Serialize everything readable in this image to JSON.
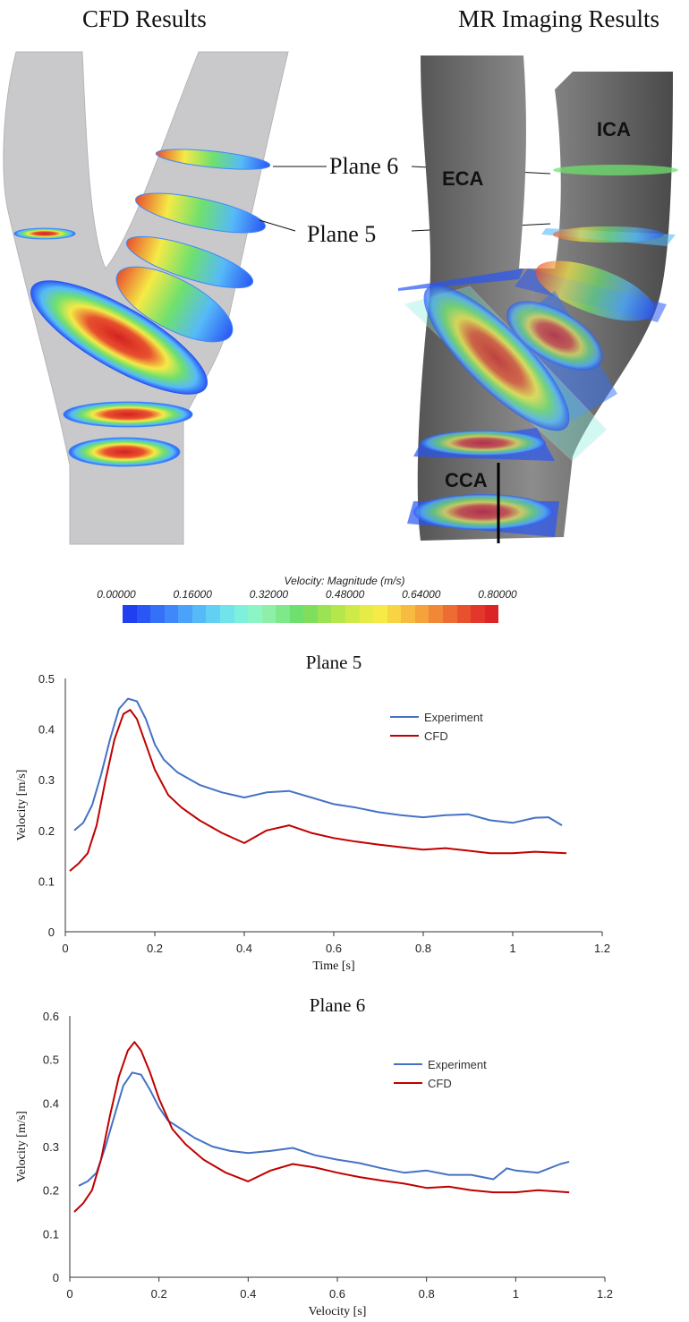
{
  "figure": {
    "left_title": "CFD Results",
    "right_title": "MR Imaging Results",
    "plane_labels": [
      "Plane 6",
      "Plane 5"
    ],
    "vessel_labels": {
      "ica": "ICA",
      "eca": "ECA",
      "cca": "CCA"
    }
  },
  "colorbar": {
    "title": "Velocity: Magnitude (m/s)",
    "ticks": [
      "0.00000",
      "0.16000",
      "0.32000",
      "0.48000",
      "0.64000",
      "0.80000"
    ],
    "colors": [
      "#1f3ff0",
      "#2a56f5",
      "#3470f8",
      "#3f88fa",
      "#4aa2fb",
      "#56baf8",
      "#62d0f2",
      "#70e4ea",
      "#7ef0dc",
      "#8cf5c6",
      "#8ef0a8",
      "#7ee88a",
      "#6fe06e",
      "#7fdf5d",
      "#9be353",
      "#b5e74c",
      "#cfea48",
      "#e5ec47",
      "#f5ea46",
      "#f8d443",
      "#f6bb40",
      "#f3a23c",
      "#f08838",
      "#ec6c33",
      "#e8502e",
      "#e2372a",
      "#dc2426"
    ]
  },
  "chart_data": [
    {
      "type": "line",
      "title": "Plane 5",
      "xlabel": "Time [s]",
      "ylabel": "Velocity [m/s]",
      "xlim": [
        0,
        1.2
      ],
      "ylim": [
        0,
        0.5
      ],
      "xticks": [
        "0",
        "0.2",
        "0.4",
        "0.6",
        "0.8",
        "1",
        "1.2"
      ],
      "yticks": [
        "0",
        "0.1",
        "0.2",
        "0.3",
        "0.4",
        "0.5"
      ],
      "legend_position": "top-right",
      "series": [
        {
          "name": "Experiment",
          "color": "#4472c4",
          "x": [
            0.02,
            0.04,
            0.06,
            0.08,
            0.1,
            0.12,
            0.14,
            0.16,
            0.18,
            0.2,
            0.22,
            0.25,
            0.3,
            0.35,
            0.4,
            0.45,
            0.5,
            0.55,
            0.6,
            0.65,
            0.7,
            0.75,
            0.8,
            0.85,
            0.9,
            0.95,
            1.0,
            1.05,
            1.08,
            1.11
          ],
          "y": [
            0.2,
            0.215,
            0.25,
            0.31,
            0.38,
            0.44,
            0.46,
            0.455,
            0.42,
            0.37,
            0.34,
            0.315,
            0.29,
            0.275,
            0.265,
            0.275,
            0.278,
            0.265,
            0.252,
            0.245,
            0.236,
            0.23,
            0.226,
            0.23,
            0.232,
            0.22,
            0.215,
            0.225,
            0.226,
            0.21
          ]
        },
        {
          "name": "CFD",
          "color": "#c00000",
          "x": [
            0.01,
            0.03,
            0.05,
            0.07,
            0.09,
            0.11,
            0.13,
            0.145,
            0.16,
            0.18,
            0.2,
            0.23,
            0.26,
            0.3,
            0.35,
            0.4,
            0.45,
            0.5,
            0.55,
            0.6,
            0.65,
            0.7,
            0.75,
            0.8,
            0.85,
            0.9,
            0.95,
            1.0,
            1.05,
            1.12
          ],
          "y": [
            0.12,
            0.135,
            0.155,
            0.21,
            0.3,
            0.38,
            0.43,
            0.438,
            0.42,
            0.37,
            0.32,
            0.27,
            0.245,
            0.22,
            0.195,
            0.175,
            0.2,
            0.21,
            0.195,
            0.185,
            0.178,
            0.172,
            0.167,
            0.162,
            0.165,
            0.16,
            0.155,
            0.155,
            0.158,
            0.155
          ]
        }
      ]
    },
    {
      "type": "line",
      "title": "Plane 6",
      "xlabel": "Velocity [s]",
      "ylabel": "Velocity [m/s]",
      "xlim": [
        0,
        1.2
      ],
      "ylim": [
        0,
        0.6
      ],
      "xticks": [
        "0",
        "0.2",
        "0.4",
        "0.6",
        "0.8",
        "1",
        "1.2"
      ],
      "yticks": [
        "0",
        "0.1",
        "0.2",
        "0.3",
        "0.4",
        "0.5",
        "0.6"
      ],
      "legend_position": "top-right",
      "series": [
        {
          "name": "Experiment",
          "color": "#4472c4",
          "x": [
            0.02,
            0.04,
            0.06,
            0.08,
            0.1,
            0.12,
            0.14,
            0.16,
            0.18,
            0.2,
            0.22,
            0.25,
            0.28,
            0.32,
            0.36,
            0.4,
            0.45,
            0.5,
            0.55,
            0.6,
            0.65,
            0.7,
            0.75,
            0.8,
            0.85,
            0.9,
            0.95,
            0.98,
            1.0,
            1.05,
            1.1,
            1.12
          ],
          "y": [
            0.21,
            0.22,
            0.24,
            0.3,
            0.37,
            0.44,
            0.47,
            0.465,
            0.43,
            0.39,
            0.36,
            0.34,
            0.32,
            0.3,
            0.29,
            0.285,
            0.29,
            0.297,
            0.28,
            0.27,
            0.262,
            0.25,
            0.24,
            0.245,
            0.235,
            0.235,
            0.225,
            0.25,
            0.245,
            0.24,
            0.26,
            0.265
          ]
        },
        {
          "name": "CFD",
          "color": "#c00000",
          "x": [
            0.01,
            0.03,
            0.05,
            0.07,
            0.09,
            0.11,
            0.13,
            0.145,
            0.16,
            0.18,
            0.2,
            0.23,
            0.26,
            0.3,
            0.35,
            0.4,
            0.45,
            0.5,
            0.55,
            0.6,
            0.65,
            0.7,
            0.75,
            0.8,
            0.85,
            0.9,
            0.95,
            1.0,
            1.05,
            1.12
          ],
          "y": [
            0.15,
            0.17,
            0.2,
            0.27,
            0.37,
            0.46,
            0.52,
            0.54,
            0.52,
            0.47,
            0.41,
            0.34,
            0.305,
            0.27,
            0.24,
            0.22,
            0.245,
            0.26,
            0.252,
            0.24,
            0.23,
            0.222,
            0.215,
            0.205,
            0.208,
            0.2,
            0.195,
            0.195,
            0.2,
            0.195
          ]
        }
      ]
    }
  ]
}
